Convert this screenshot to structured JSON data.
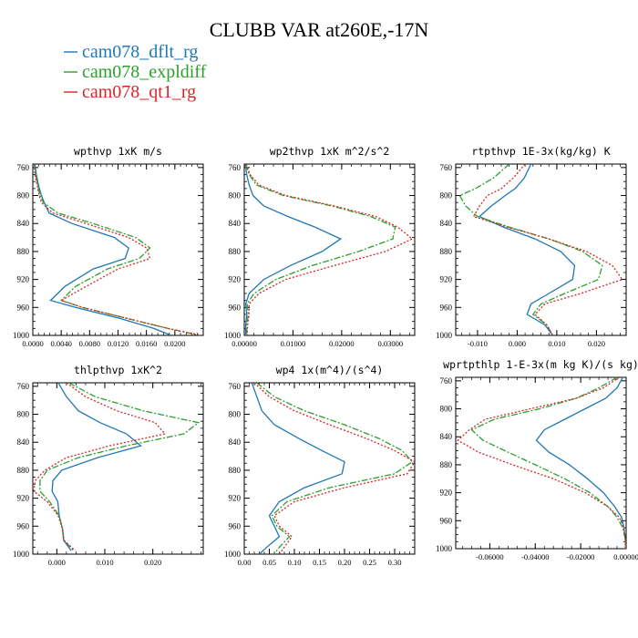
{
  "title": "CLUBB VAR at260E,-17N",
  "legend": [
    {
      "name": "cam078_dflt_rg",
      "color": "#1f77b4",
      "dash": "solid"
    },
    {
      "name": "cam078_expldiff",
      "color": "#2ca02c",
      "dash": "dashdot"
    },
    {
      "name": "cam078_qt1_rg",
      "color": "#d62728",
      "dash": "dotted"
    }
  ],
  "chart_data": [
    {
      "type": "line",
      "title": "wpthvp  1xK m/s",
      "xlim": [
        0.0,
        0.024
      ],
      "xticks": [
        0.0,
        0.004,
        0.008,
        0.012,
        0.016,
        0.02
      ],
      "xticklabels": [
        "0.0000",
        "0.0040",
        "0.0080",
        "0.0120",
        "0.0160",
        "0.0200"
      ],
      "ylim": [
        1000,
        755
      ],
      "yticks": [
        760,
        800,
        840,
        880,
        920,
        960,
        1000
      ],
      "yticklabels": [
        "760",
        "800",
        "840",
        "880",
        "920",
        "960",
        "1000"
      ],
      "y": [
        755,
        770,
        785,
        800,
        810,
        825,
        840,
        860,
        875,
        890,
        905,
        930,
        950,
        960,
        975,
        990,
        1000
      ],
      "series": [
        {
          "name": "cam078_dflt_rg",
          "values": [
            0.0003,
            0.0005,
            0.0008,
            0.0012,
            0.0016,
            0.0023,
            0.0055,
            0.0115,
            0.0135,
            0.013,
            0.0085,
            0.0045,
            0.0025,
            0.006,
            0.012,
            0.017,
            0.0195
          ]
        },
        {
          "name": "cam078_expldiff",
          "values": [
            0.0002,
            0.0004,
            0.0007,
            0.001,
            0.0015,
            0.0035,
            0.0085,
            0.0145,
            0.0165,
            0.015,
            0.0105,
            0.006,
            0.004,
            0.007,
            0.013,
            0.019,
            0.0235
          ]
        },
        {
          "name": "cam078_qt1_rg",
          "values": [
            0.0002,
            0.0003,
            0.0006,
            0.0009,
            0.0012,
            0.0028,
            0.0075,
            0.0135,
            0.016,
            0.0165,
            0.012,
            0.0075,
            0.004,
            0.007,
            0.013,
            0.019,
            0.0238
          ]
        }
      ]
    },
    {
      "type": "line",
      "title": "wp2thvp  1xK m^2/s^2",
      "xlim": [
        0.0,
        0.035
      ],
      "xticks": [
        0.0,
        0.01,
        0.02,
        0.03
      ],
      "xticklabels": [
        "0.00000",
        "0.01000",
        "0.02000",
        "0.03000"
      ],
      "ylim": [
        1000,
        755
      ],
      "yticks": [
        760,
        800,
        840,
        880,
        920,
        960,
        1000
      ],
      "yticklabels": [
        "760",
        "800",
        "840",
        "880",
        "920",
        "960",
        "1000"
      ],
      "y": [
        755,
        770,
        785,
        800,
        815,
        830,
        845,
        862,
        880,
        900,
        920,
        940,
        955,
        970,
        985,
        1000
      ],
      "series": [
        {
          "name": "cam078_dflt_rg",
          "values": [
            0.0002,
            0.0005,
            0.001,
            0.0018,
            0.004,
            0.009,
            0.0145,
            0.0198,
            0.016,
            0.0095,
            0.004,
            0.001,
            0.0003,
            0.0005,
            0.0003,
            0.0003
          ]
        },
        {
          "name": "cam078_expldiff",
          "values": [
            0.0003,
            0.001,
            0.0025,
            0.008,
            0.018,
            0.026,
            0.031,
            0.0305,
            0.0235,
            0.014,
            0.0065,
            0.002,
            0.0006,
            0.0008,
            0.0005,
            0.0005
          ]
        },
        {
          "name": "cam078_qt1_rg",
          "values": [
            0.0004,
            0.0012,
            0.003,
            0.0085,
            0.0185,
            0.027,
            0.0315,
            0.0345,
            0.029,
            0.0185,
            0.0085,
            0.003,
            0.001,
            0.001,
            0.0007,
            0.0006
          ]
        }
      ]
    },
    {
      "type": "line",
      "title": "rtpthvp  1E-3x(kg/kg) K",
      "xlim": [
        -0.0155,
        0.0275
      ],
      "xticks": [
        -0.01,
        0.0,
        0.01,
        0.02
      ],
      "xticklabels": [
        "-0.010",
        "0.000",
        "0.010",
        "0.020"
      ],
      "ylim": [
        1000,
        755
      ],
      "yticks": [
        760,
        800,
        840,
        880,
        920,
        960,
        1000
      ],
      "yticklabels": [
        "760",
        "800",
        "840",
        "880",
        "920",
        "960",
        "1000"
      ],
      "y": [
        755,
        775,
        790,
        800,
        815,
        830,
        845,
        862,
        880,
        900,
        920,
        940,
        955,
        970,
        985,
        1000
      ],
      "series": [
        {
          "name": "cam078_dflt_rg",
          "values": [
            0.0035,
            0.0018,
            -0.0005,
            -0.003,
            -0.0065,
            -0.0095,
            -0.0035,
            0.0045,
            0.011,
            0.0145,
            0.014,
            0.008,
            0.0035,
            0.0025,
            0.007,
            0.009
          ]
        },
        {
          "name": "cam078_expldiff",
          "values": [
            -0.002,
            -0.006,
            -0.0105,
            -0.0145,
            -0.013,
            -0.01,
            -0.002,
            0.008,
            0.0165,
            0.0215,
            0.0205,
            0.012,
            0.006,
            0.004,
            0.0075,
            0.009
          ]
        },
        {
          "name": "cam078_qt1_rg",
          "values": [
            0.002,
            -0.001,
            -0.004,
            -0.0075,
            -0.0095,
            -0.011,
            -0.0025,
            0.008,
            0.0175,
            0.024,
            0.0265,
            0.016,
            0.007,
            0.0045,
            0.0075,
            0.009
          ]
        }
      ]
    },
    {
      "type": "line",
      "title": "thlpthvp  1xK^2",
      "xlim": [
        -0.005,
        0.0305
      ],
      "xticks": [
        0.0,
        0.01,
        0.02
      ],
      "xticklabels": [
        "0.000",
        "0.010",
        "0.020"
      ],
      "ylim": [
        1000,
        755
      ],
      "yticks": [
        760,
        800,
        840,
        880,
        920,
        960,
        1000
      ],
      "yticklabels": [
        "760",
        "800",
        "840",
        "880",
        "920",
        "960",
        "1000"
      ],
      "y": [
        755,
        775,
        795,
        812,
        828,
        845,
        862,
        880,
        895,
        910,
        925,
        945,
        965,
        980,
        995
      ],
      "series": [
        {
          "name": "cam078_dflt_rg",
          "values": [
            0.0003,
            0.002,
            0.0045,
            0.009,
            0.0145,
            0.0175,
            0.0085,
            0.001,
            -0.0008,
            -0.001,
            0.0002,
            0.0005,
            0.0012,
            0.0014,
            0.003
          ]
        },
        {
          "name": "cam078_expldiff",
          "values": [
            0.0025,
            0.008,
            0.018,
            0.0295,
            0.0265,
            0.0145,
            0.0045,
            -0.002,
            -0.0035,
            -0.0035,
            -0.0015,
            0.0005,
            0.0012,
            0.0015,
            0.0035
          ]
        },
        {
          "name": "cam078_qt1_rg",
          "values": [
            0.002,
            0.006,
            0.0125,
            0.0205,
            0.0225,
            0.011,
            0.002,
            -0.0025,
            -0.0045,
            -0.0048,
            -0.002,
            0.0003,
            0.0012,
            0.0015,
            0.0038
          ]
        }
      ]
    },
    {
      "type": "line",
      "title": "wp4  1x(m^4)/(s^4)",
      "xlim": [
        0.0,
        0.34
      ],
      "xticks": [
        0.0,
        0.05,
        0.1,
        0.15,
        0.2,
        0.25,
        0.3
      ],
      "xticklabels": [
        "0.00",
        "0.05",
        "0.10",
        "0.15",
        "0.20",
        "0.25",
        "0.30"
      ],
      "ylim": [
        1000,
        755
      ],
      "yticks": [
        760,
        800,
        840,
        880,
        920,
        960,
        1000
      ],
      "yticklabels": [
        "760",
        "800",
        "840",
        "880",
        "920",
        "960",
        "1000"
      ],
      "y": [
        755,
        775,
        795,
        815,
        835,
        852,
        868,
        885,
        905,
        925,
        945,
        960,
        975,
        990,
        1000
      ],
      "series": [
        {
          "name": "cam078_dflt_rg",
          "values": [
            0.015,
            0.025,
            0.035,
            0.06,
            0.11,
            0.155,
            0.2,
            0.195,
            0.12,
            0.07,
            0.05,
            0.06,
            0.07,
            0.045,
            0.03
          ]
        },
        {
          "name": "cam078_expldiff",
          "values": [
            0.025,
            0.06,
            0.12,
            0.2,
            0.27,
            0.315,
            0.335,
            0.3,
            0.17,
            0.085,
            0.055,
            0.065,
            0.09,
            0.07,
            0.06
          ]
        },
        {
          "name": "cam078_qt1_rg",
          "values": [
            0.02,
            0.05,
            0.1,
            0.17,
            0.245,
            0.3,
            0.34,
            0.325,
            0.2,
            0.1,
            0.06,
            0.07,
            0.095,
            0.08,
            0.07
          ]
        }
      ]
    },
    {
      "type": "line",
      "title": "wprtpthlp  1-E-3x(m kg K)/(s kg)",
      "xlim": [
        -0.075,
        0.0
      ],
      "xticks": [
        -0.06,
        -0.04,
        -0.02,
        0.0
      ],
      "xticklabels": [
        "-0.06000",
        "-0.04000",
        "-0.02000",
        "0.00000"
      ],
      "ylim": [
        1000,
        755
      ],
      "yticks": [
        760,
        800,
        840,
        880,
        920,
        960,
        1000
      ],
      "yticklabels": [
        "760",
        "800",
        "840",
        "880",
        "920",
        "960",
        "1000"
      ],
      "y": [
        755,
        770,
        785,
        800,
        815,
        830,
        845,
        862,
        880,
        900,
        920,
        940,
        955,
        970,
        985,
        1000
      ],
      "series": [
        {
          "name": "cam078_dflt_rg",
          "values": [
            -0.0015,
            -0.004,
            -0.009,
            -0.018,
            -0.027,
            -0.036,
            -0.0395,
            -0.034,
            -0.025,
            -0.017,
            -0.01,
            -0.005,
            -0.002,
            -0.001,
            -0.0004,
            -0.0002
          ]
        },
        {
          "name": "cam078_expldiff",
          "values": [
            -0.004,
            -0.012,
            -0.022,
            -0.038,
            -0.058,
            -0.068,
            -0.063,
            -0.052,
            -0.04,
            -0.027,
            -0.016,
            -0.008,
            -0.004,
            -0.0015,
            -0.0005,
            -0.0002
          ]
        },
        {
          "name": "cam078_qt1_rg",
          "values": [
            -0.003,
            -0.01,
            -0.022,
            -0.042,
            -0.062,
            -0.069,
            -0.074,
            -0.065,
            -0.05,
            -0.032,
            -0.018,
            -0.008,
            -0.003,
            -0.001,
            -0.0004,
            -0.0002
          ]
        }
      ]
    }
  ]
}
